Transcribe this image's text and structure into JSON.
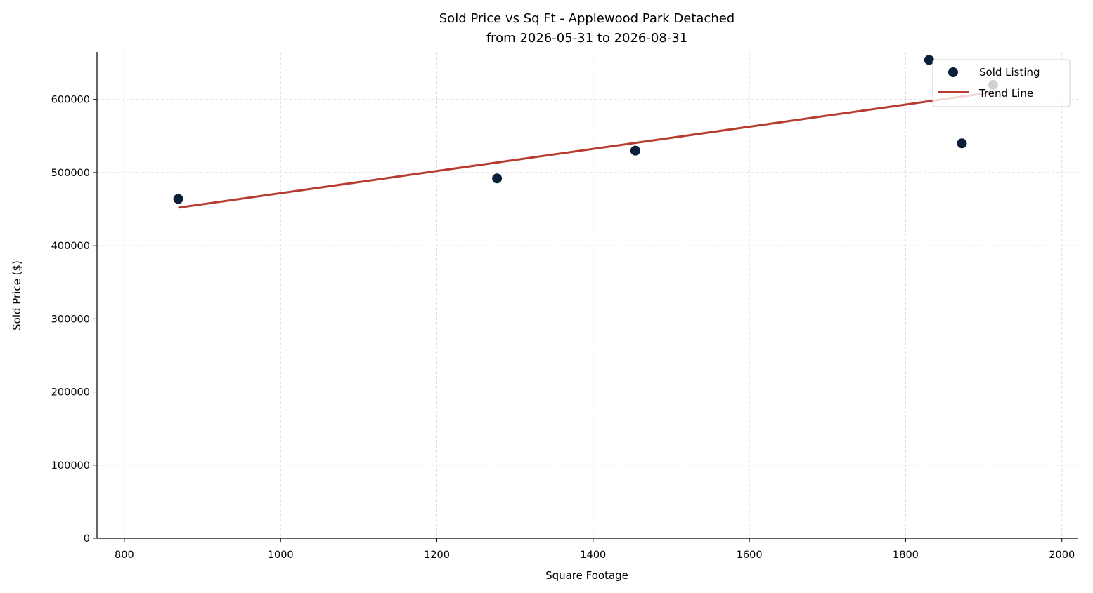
{
  "chart_data": {
    "type": "scatter",
    "title": "Sold Price vs Sq Ft - Applewood Park Detached",
    "subtitle": "from 2026-05-31 to 2026-08-31",
    "xlabel": "Square Footage",
    "ylabel": "Sold Price ($)",
    "xlim": [
      765,
      2020
    ],
    "ylim": [
      0,
      665000
    ],
    "xticks": [
      800,
      1000,
      1200,
      1400,
      1600,
      1800,
      2000
    ],
    "yticks": [
      0,
      100000,
      200000,
      300000,
      400000,
      500000,
      600000
    ],
    "grid": true,
    "legend_position": "upper-right",
    "series": [
      {
        "name": "Sold Listing",
        "kind": "scatter",
        "color": "#0b1f3a",
        "points": [
          {
            "x": 869,
            "y": 464000
          },
          {
            "x": 1277,
            "y": 492000
          },
          {
            "x": 1454,
            "y": 530000
          },
          {
            "x": 1830,
            "y": 654000
          },
          {
            "x": 1872,
            "y": 540000
          },
          {
            "x": 1912,
            "y": 620000
          }
        ]
      },
      {
        "name": "Trend Line",
        "kind": "line",
        "color": "#b73b2e",
        "points": [
          {
            "x": 869,
            "y": 452000
          },
          {
            "x": 1912,
            "y": 610000
          }
        ]
      }
    ]
  }
}
